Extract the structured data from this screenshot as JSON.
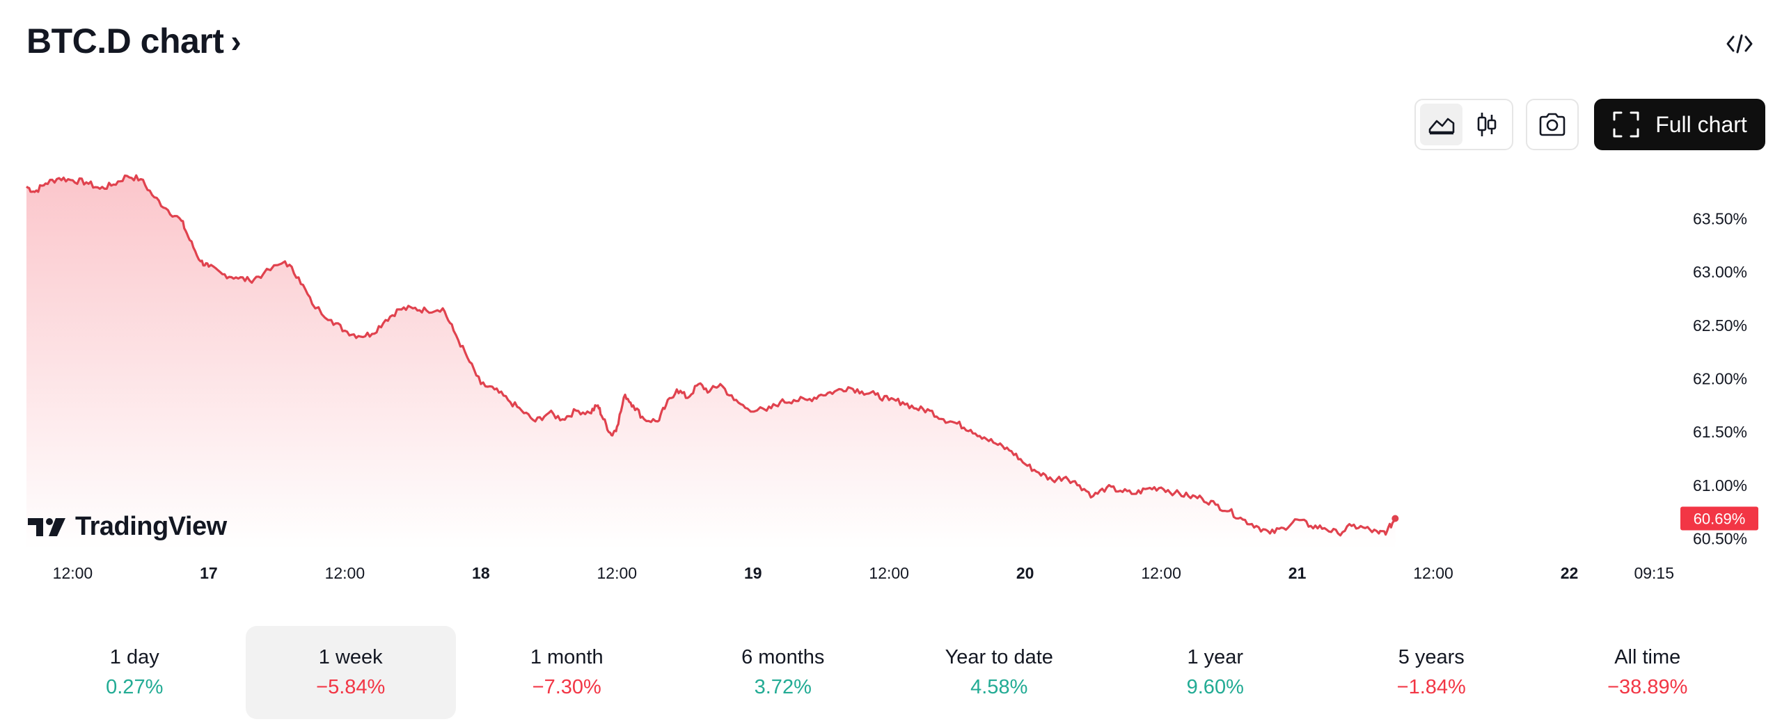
{
  "header": {
    "title": "BTC.D chart",
    "chevron_icon": "chevron-right-icon",
    "embed_icon": "code-icon"
  },
  "toolbar": {
    "line_chart_icon": "area-chart-icon",
    "candles_icon": "candlestick-icon",
    "snapshot_icon": "camera-icon",
    "full_chart_icon": "fullscreen-icon",
    "full_chart_label": "Full chart",
    "active_type": "area"
  },
  "branding": {
    "logo_text": "TradingView"
  },
  "colors": {
    "line": "#e0424e",
    "fill_top": "#fbc6cb",
    "price_tag": "#f23645",
    "positive": "#22ab94",
    "negative": "#f23645"
  },
  "chart_data": {
    "type": "area",
    "y_unit": "%",
    "ylim": [
      60.4,
      64.05
    ],
    "y_ticks": [
      "63.50%",
      "63.00%",
      "62.50%",
      "62.00%",
      "61.50%",
      "61.00%",
      "60.50%"
    ],
    "y_tick_values": [
      63.5,
      63.0,
      62.5,
      62.0,
      61.5,
      61.0,
      60.5
    ],
    "x_ticks": [
      {
        "label": "12:00",
        "t": 0.5,
        "bold": false
      },
      {
        "label": "17",
        "t": 1.0,
        "bold": true
      },
      {
        "label": "12:00",
        "t": 1.5,
        "bold": false
      },
      {
        "label": "18",
        "t": 2.0,
        "bold": true
      },
      {
        "label": "12:00",
        "t": 2.5,
        "bold": false
      },
      {
        "label": "19",
        "t": 3.0,
        "bold": true
      },
      {
        "label": "12:00",
        "t": 3.5,
        "bold": false
      },
      {
        "label": "20",
        "t": 4.0,
        "bold": true
      },
      {
        "label": "12:00",
        "t": 4.5,
        "bold": false
      },
      {
        "label": "21",
        "t": 5.0,
        "bold": true
      },
      {
        "label": "12:00",
        "t": 5.5,
        "bold": false
      },
      {
        "label": "22",
        "t": 6.0,
        "bold": true
      },
      {
        "label": "09:15",
        "t": 6.385,
        "bold": false
      }
    ],
    "x_range": [
      0.33,
      6.385
    ],
    "last_value_label": "60.69%",
    "last_value": 60.69,
    "series": [
      {
        "points": [
          [
            0.33,
            63.8
          ],
          [
            0.36,
            63.75
          ],
          [
            0.4,
            63.83
          ],
          [
            0.45,
            63.88
          ],
          [
            0.5,
            63.86
          ],
          [
            0.55,
            63.84
          ],
          [
            0.6,
            63.78
          ],
          [
            0.65,
            63.82
          ],
          [
            0.7,
            63.9
          ],
          [
            0.75,
            63.87
          ],
          [
            0.8,
            63.7
          ],
          [
            0.85,
            63.58
          ],
          [
            0.9,
            63.48
          ],
          [
            0.93,
            63.3
          ],
          [
            0.97,
            63.1
          ],
          [
            1.0,
            63.05
          ],
          [
            1.05,
            62.98
          ],
          [
            1.1,
            62.95
          ],
          [
            1.15,
            62.92
          ],
          [
            1.2,
            62.98
          ],
          [
            1.28,
            63.1
          ],
          [
            1.33,
            62.95
          ],
          [
            1.38,
            62.7
          ],
          [
            1.45,
            62.55
          ],
          [
            1.5,
            62.45
          ],
          [
            1.55,
            62.4
          ],
          [
            1.6,
            62.42
          ],
          [
            1.65,
            62.55
          ],
          [
            1.7,
            62.65
          ],
          [
            1.75,
            62.66
          ],
          [
            1.8,
            62.64
          ],
          [
            1.86,
            62.66
          ],
          [
            1.9,
            62.45
          ],
          [
            1.95,
            62.2
          ],
          [
            2.0,
            61.95
          ],
          [
            2.05,
            61.9
          ],
          [
            2.1,
            61.8
          ],
          [
            2.15,
            61.7
          ],
          [
            2.2,
            61.6
          ],
          [
            2.25,
            61.68
          ],
          [
            2.3,
            61.62
          ],
          [
            2.35,
            61.7
          ],
          [
            2.4,
            61.68
          ],
          [
            2.43,
            61.75
          ],
          [
            2.45,
            61.62
          ],
          [
            2.48,
            61.47
          ],
          [
            2.5,
            61.55
          ],
          [
            2.53,
            61.85
          ],
          [
            2.56,
            61.75
          ],
          [
            2.6,
            61.62
          ],
          [
            2.65,
            61.6
          ],
          [
            2.68,
            61.75
          ],
          [
            2.72,
            61.9
          ],
          [
            2.76,
            61.82
          ],
          [
            2.8,
            61.95
          ],
          [
            2.84,
            61.88
          ],
          [
            2.88,
            61.95
          ],
          [
            2.93,
            61.8
          ],
          [
            2.98,
            61.72
          ],
          [
            3.05,
            61.7
          ],
          [
            3.1,
            61.78
          ],
          [
            3.15,
            61.8
          ],
          [
            3.2,
            61.8
          ],
          [
            3.25,
            61.85
          ],
          [
            3.3,
            61.88
          ],
          [
            3.35,
            61.92
          ],
          [
            3.4,
            61.88
          ],
          [
            3.45,
            61.85
          ],
          [
            3.5,
            61.8
          ],
          [
            3.55,
            61.78
          ],
          [
            3.6,
            61.72
          ],
          [
            3.65,
            61.7
          ],
          [
            3.7,
            61.62
          ],
          [
            3.75,
            61.58
          ],
          [
            3.8,
            61.52
          ],
          [
            3.85,
            61.45
          ],
          [
            3.9,
            61.38
          ],
          [
            3.95,
            61.32
          ],
          [
            4.0,
            61.2
          ],
          [
            4.05,
            61.12
          ],
          [
            4.1,
            61.05
          ],
          [
            4.15,
            61.08
          ],
          [
            4.2,
            61.0
          ],
          [
            4.25,
            60.9
          ],
          [
            4.3,
            60.98
          ],
          [
            4.35,
            60.95
          ],
          [
            4.4,
            60.92
          ],
          [
            4.45,
            60.97
          ],
          [
            4.5,
            60.98
          ],
          [
            4.55,
            60.93
          ],
          [
            4.6,
            60.9
          ],
          [
            4.65,
            60.88
          ],
          [
            4.7,
            60.82
          ],
          [
            4.75,
            60.76
          ],
          [
            4.8,
            60.68
          ],
          [
            4.85,
            60.62
          ],
          [
            4.9,
            60.55
          ],
          [
            4.95,
            60.6
          ],
          [
            5.0,
            60.68
          ],
          [
            5.05,
            60.62
          ],
          [
            5.1,
            60.6
          ],
          [
            5.15,
            60.55
          ],
          [
            5.2,
            60.62
          ],
          [
            5.25,
            60.6
          ],
          [
            5.3,
            60.55
          ],
          [
            5.33,
            60.57
          ],
          [
            5.36,
            60.69
          ]
        ]
      }
    ]
  },
  "periods": [
    {
      "label": "1 day",
      "value": "0.27%",
      "sign": "pos",
      "active": false
    },
    {
      "label": "1 week",
      "value": "−5.84%",
      "sign": "neg",
      "active": true
    },
    {
      "label": "1 month",
      "value": "−7.30%",
      "sign": "neg",
      "active": false
    },
    {
      "label": "6 months",
      "value": "3.72%",
      "sign": "pos",
      "active": false
    },
    {
      "label": "Year to date",
      "value": "4.58%",
      "sign": "pos",
      "active": false
    },
    {
      "label": "1 year",
      "value": "9.60%",
      "sign": "pos",
      "active": false
    },
    {
      "label": "5 years",
      "value": "−1.84%",
      "sign": "neg",
      "active": false
    },
    {
      "label": "All time",
      "value": "−38.89%",
      "sign": "neg",
      "active": false
    }
  ]
}
